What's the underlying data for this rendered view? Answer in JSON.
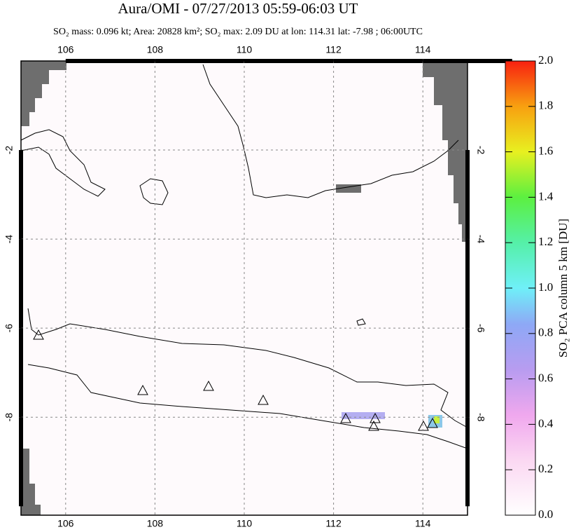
{
  "chart_data": {
    "type": "map",
    "title": "Aura/OMI - 07/27/2013 05:59-06:03 UT",
    "subtitle": "SO₂ mass: 0.096 kt; Area: 20828 km²; SO₂ max: 2.09 DU at lon: 114.31 lat: -7.98 ; 06:00UTC",
    "xlim": [
      105,
      115
    ],
    "xticks": [
      106,
      108,
      110,
      112,
      114
    ],
    "ylim": [
      -10.2,
      0
    ],
    "yticks": [
      -2,
      -4,
      -6,
      -8
    ],
    "grid": true,
    "colorbar": {
      "label": "SO₂ PCA column 5 km [DU]",
      "lim": [
        0,
        2
      ],
      "ticks": [
        {
          "value": 0,
          "label": "0.0"
        },
        {
          "value": 0.2,
          "label": "0.2"
        },
        {
          "value": 0.4,
          "label": "0.4"
        },
        {
          "value": 0.6,
          "label": "0.6"
        },
        {
          "value": 0.8,
          "label": "0.8"
        },
        {
          "value": 1,
          "label": "1.0"
        },
        {
          "value": 1.2,
          "label": "1.2"
        },
        {
          "value": 1.4,
          "label": "1.4"
        },
        {
          "value": 1.6,
          "label": "1.6"
        },
        {
          "value": 1.8,
          "label": "1.8"
        },
        {
          "value": 2,
          "label": "2.0"
        }
      ]
    }
  }
}
